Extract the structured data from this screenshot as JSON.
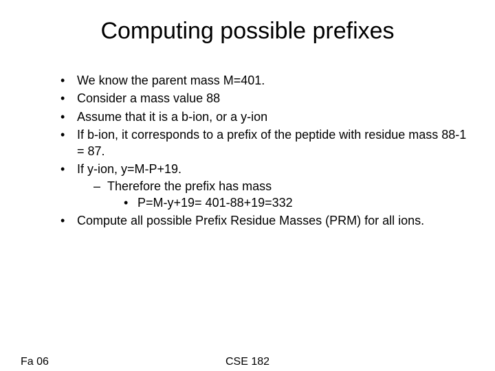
{
  "title": "Computing possible prefixes",
  "bullets": {
    "b1": "We know the parent mass M=401.",
    "b2": "Consider a mass value 88",
    "b3": " Assume that it is a b-ion, or a y-ion",
    "b4": "If b-ion, it corresponds to a prefix of the peptide with residue mass 88-1 = 87.",
    "b5": "If y-ion, y=M-P+19.",
    "b5_1": "Therefore the prefix has mass",
    "b5_1_1": "P=M-y+19= 401-88+19=332",
    "b6": "Compute all possible Prefix Residue Masses (PRM) for all ions."
  },
  "footer": {
    "left": "Fa 06",
    "center": "CSE 182"
  },
  "style": {
    "background_color": "#ffffff",
    "text_color": "#000000",
    "title_fontsize": 34,
    "body_fontsize": 18,
    "font_family": "Comic Sans MS"
  }
}
